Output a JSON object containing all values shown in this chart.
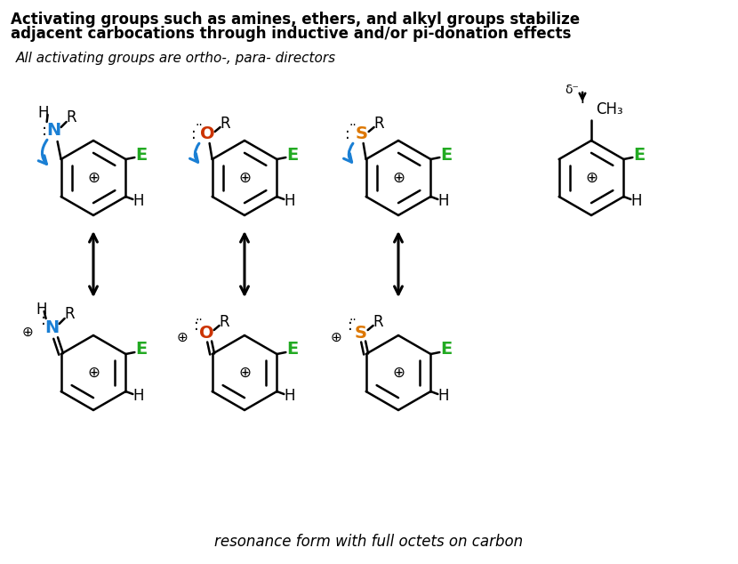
{
  "bg_color": "#ffffff",
  "title_line1": "Activating groups such as amines, ethers, and alkyl groups stabilize",
  "title_line2": "adjacent carbocations through inductive and/or pi-donation effects",
  "subtitle": "All activating groups are ortho-, para- directors",
  "footer": "resonance form with full octets on carbon",
  "black": "#000000",
  "blue": "#1a7fd4",
  "green": "#22aa22",
  "red": "#cc3300",
  "orange": "#dd7700",
  "figsize": [
    8.3,
    6.34
  ],
  "dpi": 100
}
